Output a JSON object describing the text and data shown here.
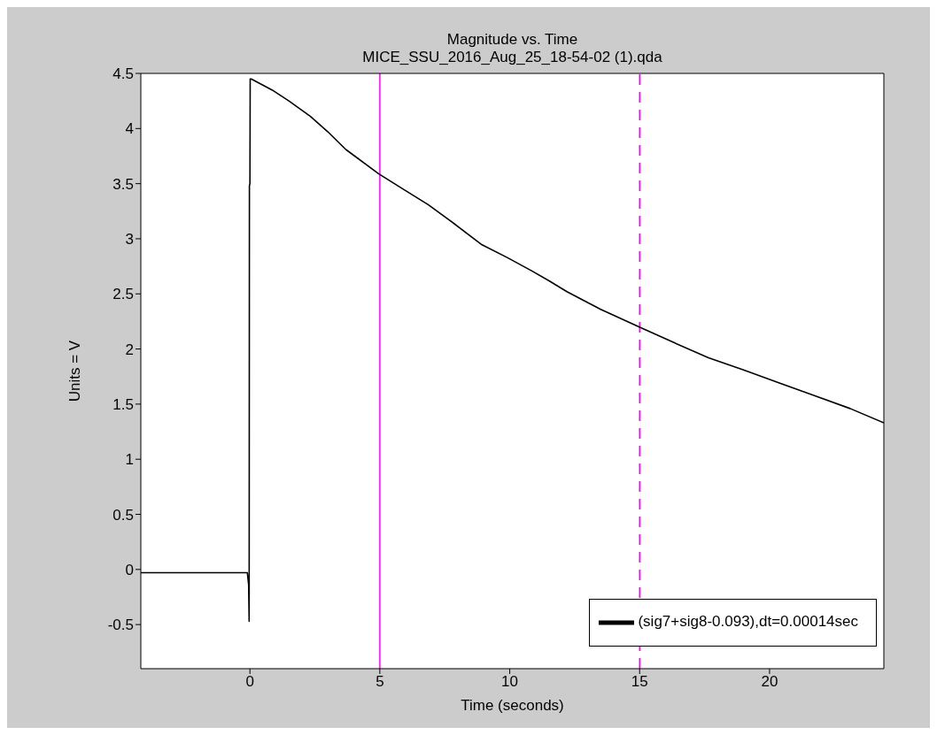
{
  "chart_data": {
    "type": "line",
    "title": "Magnitude vs. Time",
    "subtitle": "MICE_SSU_2016_Aug_25_18-54-02 (1).qda",
    "xlabel": "Time (seconds)",
    "ylabel": "Units = V",
    "x": [
      -4.2,
      -2,
      -0.1,
      -0.05,
      -0.03,
      -0.02,
      0,
      0.01,
      0.05,
      0.85,
      1.5,
      2.33,
      3,
      3.69,
      4.95,
      5.9,
      6.86,
      7.9,
      8.9,
      9.9,
      10.84,
      11.5,
      12.2,
      13.5,
      14.99,
      16.3,
      17.65,
      19,
      20.4,
      21.7,
      23.1,
      24.4
    ],
    "series": [
      {
        "name": "(sig7+sig8-0.093),dt=0.00014sec",
        "color": "#000000",
        "values": [
          -0.03,
          -0.03,
          -0.03,
          -0.14,
          -0.47,
          3.48,
          3.5,
          4.45,
          4.45,
          4.35,
          4.25,
          4.11,
          3.97,
          3.81,
          3.59,
          3.45,
          3.31,
          3.13,
          2.95,
          2.83,
          2.71,
          2.62,
          2.52,
          2.36,
          2.2,
          2.06,
          1.92,
          1.81,
          1.69,
          1.58,
          1.46,
          1.33
        ]
      }
    ],
    "xlim": [
      -4.2,
      24.4
    ],
    "ylim": [
      -0.9,
      4.5
    ],
    "xticks": [
      0,
      5,
      10,
      15,
      20
    ],
    "yticks": [
      -0.5,
      0,
      0.5,
      1,
      1.5,
      2,
      2.5,
      3,
      3.5,
      4,
      4.5
    ],
    "ref_lines": [
      {
        "axis": "x",
        "value": 5,
        "color": "#ff00ff",
        "line_style": "solid"
      },
      {
        "axis": "x",
        "value": 15,
        "color": "#ff00ff",
        "line_style": "dashed"
      }
    ],
    "legend": "bottom right"
  }
}
